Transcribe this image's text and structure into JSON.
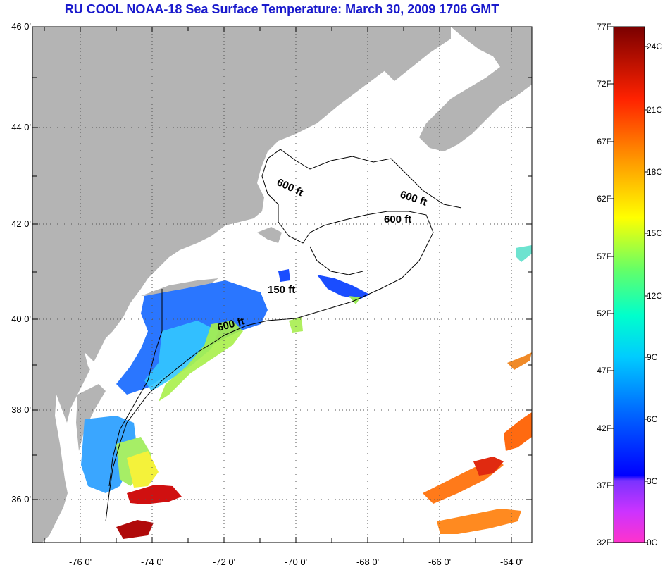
{
  "title": "RU COOL  NOAA-18  Sea Surface Temperature:  March 30, 2009 1706 GMT",
  "map": {
    "lon_range": [
      -77,
      -63
    ],
    "lat_range": [
      35,
      46
    ],
    "lat_ticks": [
      "46 0'",
      "44 0'",
      "42 0'",
      "40 0'",
      "38 0'",
      "36 0'"
    ],
    "lon_ticks": [
      "-76 0'",
      "-74 0'",
      "-72 0'",
      "-70 0'",
      "-68 0'",
      "-66 0'",
      "-64 0'"
    ],
    "land_color": "#b4b4b4",
    "grid": "dotted"
  },
  "contours": {
    "labels": [
      "600 ft",
      "600 ft",
      "600 ft",
      "150 ft",
      "600 ft"
    ]
  },
  "colorbar": {
    "fahrenheit": [
      "77F",
      "72F",
      "67F",
      "62F",
      "57F",
      "52F",
      "47F",
      "42F",
      "37F",
      "32F"
    ],
    "celsius": [
      "24C",
      "21C",
      "18C",
      "15C",
      "12C",
      "9C",
      "6C",
      "3C",
      "0C"
    ],
    "colors": [
      "#ff33cc",
      "#9933ff",
      "#0000ff",
      "#0080ff",
      "#00e5ff",
      "#66ff66",
      "#ffff00",
      "#ff9900",
      "#ff2200",
      "#7a0000"
    ]
  }
}
